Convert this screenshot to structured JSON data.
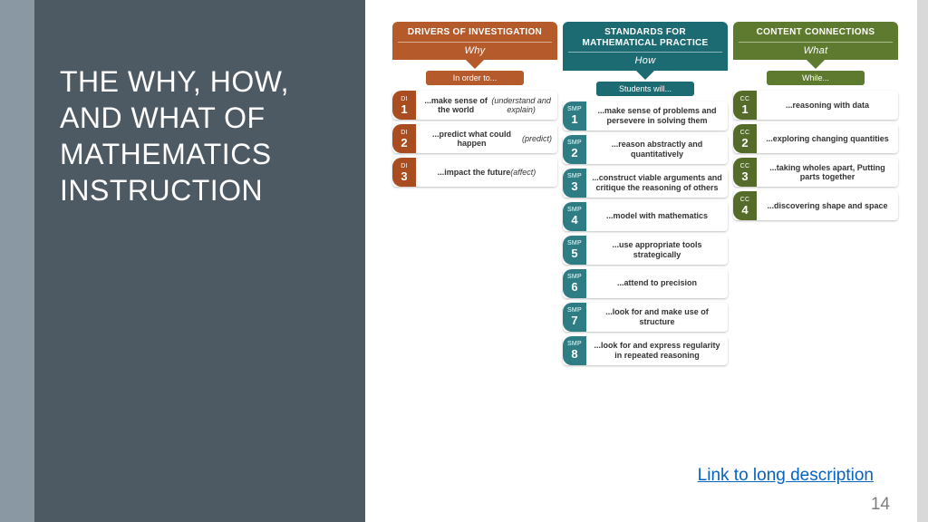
{
  "sidebar": {
    "title": "THE WHY, HOW, AND WHAT OF MATHEMATICS INSTRUCTION"
  },
  "link_text": "Link to long description",
  "page_number": "14",
  "colors": {
    "stripe": "#8a98a3",
    "sidebar_bg": "#4e5a63",
    "col1_header": "#b55a2a",
    "col1_badge": "#a94d20",
    "col2_header": "#1d6b72",
    "col2_badge": "#2f7d84",
    "col3_header": "#5e7a2e",
    "col3_badge": "#556b29"
  },
  "columns": [
    {
      "title": "DRIVERS OF INVESTIGATION",
      "subtitle": "Why",
      "lead": "In order to...",
      "abbr": "DI",
      "color": "#b55a2a",
      "badge_color": "#a94d20",
      "lead_color": "#b55a2a",
      "items": [
        {
          "n": "1",
          "text": "...make sense of the world",
          "italic": "(understand and explain)"
        },
        {
          "n": "2",
          "text": "...predict what could happen ",
          "italic": "(predict)"
        },
        {
          "n": "3",
          "text": "...impact the future",
          "italic": "(affect)"
        }
      ]
    },
    {
      "title": "STANDARDS FOR MATHEMATICAL PRACTICE",
      "subtitle": "How",
      "lead": "Students will...",
      "abbr": "SMP",
      "color": "#1d6b72",
      "badge_color": "#2f7d84",
      "lead_color": "#1d6b72",
      "items": [
        {
          "n": "1",
          "text": "...make sense of problems and persevere in solving them"
        },
        {
          "n": "2",
          "text": "...reason abstractly and quantitatively"
        },
        {
          "n": "3",
          "text": "...construct viable arguments and critique the reasoning of others"
        },
        {
          "n": "4",
          "text": "...model with mathematics"
        },
        {
          "n": "5",
          "text": "...use appropriate tools strategically"
        },
        {
          "n": "6",
          "text": "...attend to precision"
        },
        {
          "n": "7",
          "text": "...look for and make use of structure"
        },
        {
          "n": "8",
          "text": "...look for and express regularity in repeated reasoning"
        }
      ]
    },
    {
      "title": "CONTENT CONNECTIONS",
      "subtitle": "What",
      "lead": "While...",
      "abbr": "CC",
      "color": "#5e7a2e",
      "badge_color": "#556b29",
      "lead_color": "#5e7a2e",
      "items": [
        {
          "n": "1",
          "text": "...reasoning with data"
        },
        {
          "n": "2",
          "text": "...exploring changing quantities"
        },
        {
          "n": "3",
          "text": "...taking wholes apart, Putting parts together"
        },
        {
          "n": "4",
          "text": "...discovering shape and space"
        }
      ]
    }
  ]
}
